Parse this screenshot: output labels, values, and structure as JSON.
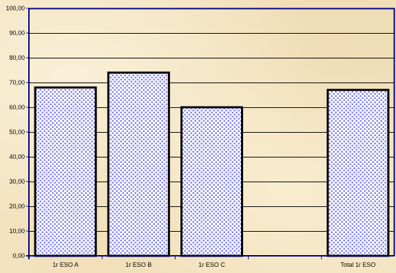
{
  "chart_data": {
    "type": "bar",
    "categories": [
      "1r ESO A",
      "1r ESO B",
      "1r ESO C",
      "",
      "Total 1r ESO"
    ],
    "values": [
      68,
      74,
      60,
      null,
      67
    ],
    "ylim": [
      0,
      100
    ],
    "yticks": [
      0,
      10,
      20,
      30,
      40,
      50,
      60,
      70,
      80,
      90,
      100
    ],
    "ytick_labels": [
      "0,00",
      "10,00",
      "20,00",
      "30,00",
      "40,00",
      "50,00",
      "60,00",
      "70,00",
      "80,00",
      "90,00",
      "100,00"
    ],
    "grid": true,
    "legend": "none",
    "colors": {
      "bar_pattern_dot": "#7b7be6",
      "bar_fill": "#ffffff",
      "bar_stroke": "#000000",
      "axis": "#000080",
      "grid": "#000000",
      "plot_border": "#000080"
    }
  }
}
